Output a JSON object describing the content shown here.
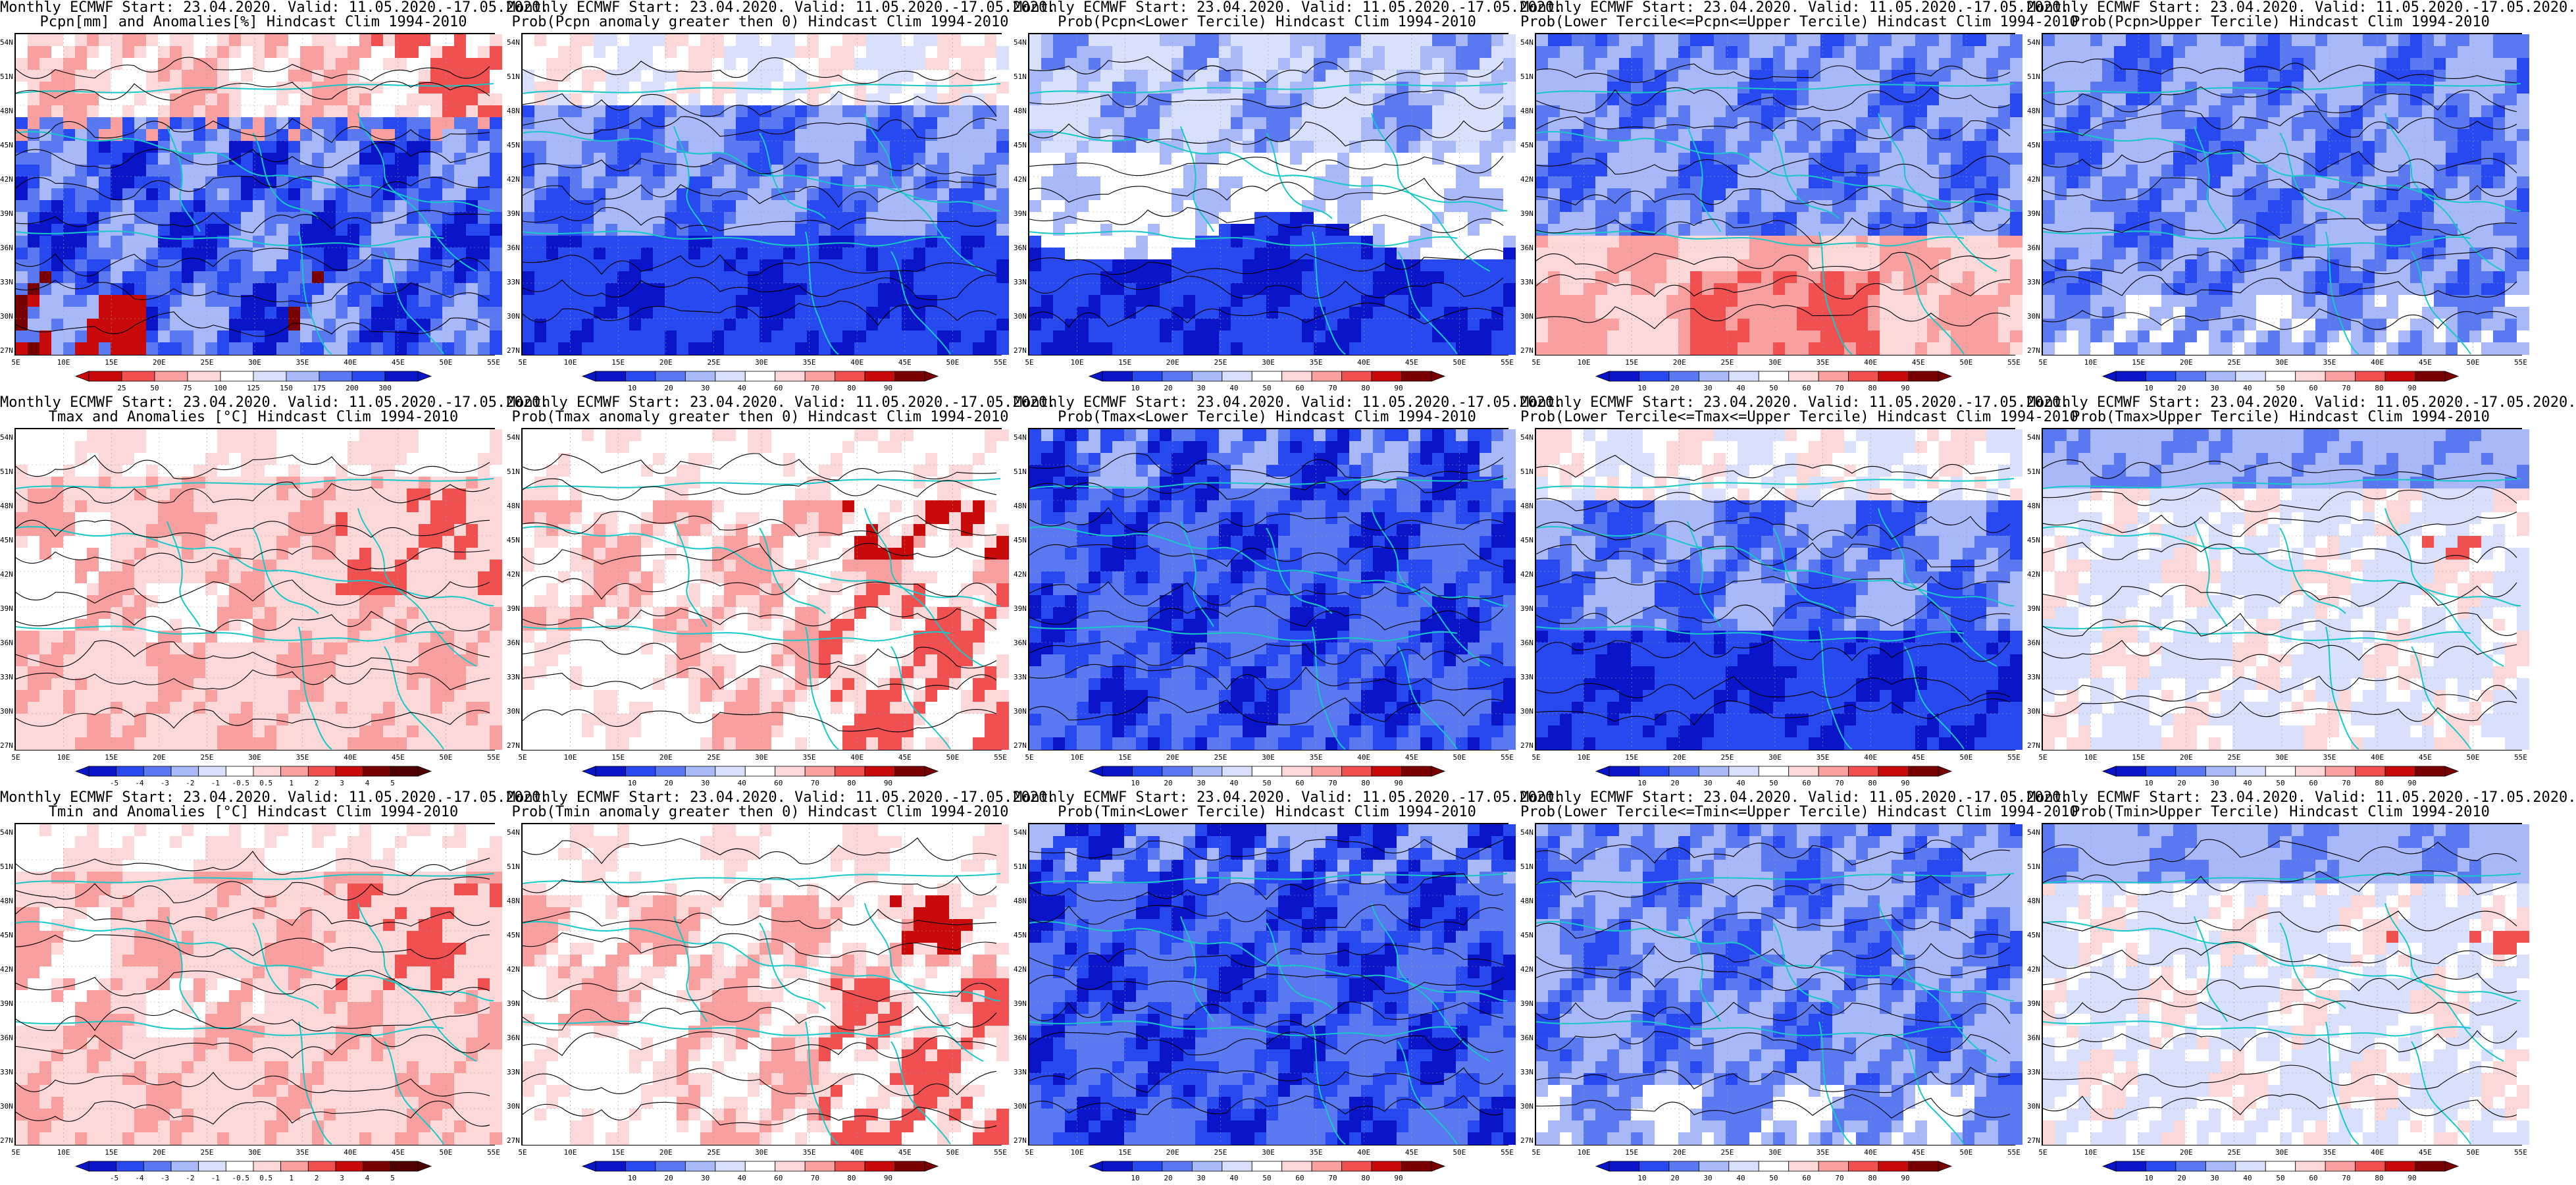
{
  "figure": {
    "panels": [
      {
        "line1": "Monthly ECMWF Start: 23.04.2020. Valid: 11.05.2020.-17.05.2020.",
        "line2": "Pcpn[mm] and Anomalies[%] Hindcast Clim 1994-2010",
        "scheme": "diverging-precip",
        "cbar_labels": [
          "25",
          "50",
          "75",
          "100",
          "125",
          "150",
          "175",
          "200",
          "300"
        ]
      },
      {
        "line1": "Monthly ECMWF Start: 23.04.2020. Valid: 11.05.2020.-17.05.2020.",
        "line2": "Prob(Pcpn anomaly greater then 0) Hindcast Clim 1994-2010",
        "scheme": "prob-blue",
        "cbar_labels": [
          "10",
          "20",
          "30",
          "40",
          "60",
          "70",
          "80",
          "90"
        ]
      },
      {
        "line1": "Monthly ECMWF Start: 23.04.2020. Valid: 11.05.2020.-17.05.2020.",
        "line2": "Prob(Pcpn<Lower Tercile) Hindcast Clim 1994-2010",
        "scheme": "prob-white-south",
        "cbar_labels": [
          "10",
          "20",
          "30",
          "40",
          "50",
          "60",
          "70",
          "80",
          "90"
        ]
      },
      {
        "line1": "Monthly ECMWF Start: 23.04.2020. Valid: 11.05.2020.-17.05.2020.",
        "line2": "Prob(Lower Tercile<=Pcpn<=Upper Tercile) Hindcast Clim 1994-2010",
        "scheme": "prob-red-south",
        "cbar_labels": [
          "10",
          "20",
          "30",
          "40",
          "50",
          "60",
          "70",
          "80",
          "90"
        ]
      },
      {
        "line1": "Monthly ECMWF Start: 23.04.2020. Valid: 11.05.2020.-17.05.2020.",
        "line2": "Prob(Pcpn>Upper Tercile) Hindcast Clim 1994-2010",
        "scheme": "prob-blue-light",
        "cbar_labels": [
          "10",
          "20",
          "30",
          "40",
          "50",
          "60",
          "70",
          "80",
          "90"
        ]
      },
      {
        "line1": "Monthly ECMWF Start: 23.04.2020. Valid: 11.05.2020.-17.05.2020.",
        "line2": "Tmax and Anomalies [°C] Hindcast Clim 1994-2010",
        "scheme": "anom-red",
        "cbar_labels": [
          "-5",
          "-4",
          "-3",
          "-2",
          "-1",
          "-0.5",
          "0.5",
          "1",
          "2",
          "3",
          "4",
          "5"
        ]
      },
      {
        "line1": "Monthly ECMWF Start: 23.04.2020. Valid: 11.05.2020.-17.05.2020.",
        "line2": "Prob(Tmax anomaly greater then 0) Hindcast Clim 1994-2010",
        "scheme": "prob-red",
        "cbar_labels": [
          "10",
          "20",
          "30",
          "40",
          "60",
          "70",
          "80",
          "90"
        ]
      },
      {
        "line1": "Monthly ECMWF Start: 23.04.2020. Valid: 11.05.2020.-17.05.2020.",
        "line2": "Prob(Tmax<Lower Tercile) Hindcast Clim 1994-2010",
        "scheme": "prob-deepblue",
        "cbar_labels": [
          "10",
          "20",
          "30",
          "40",
          "50",
          "60",
          "70",
          "80",
          "90"
        ]
      },
      {
        "line1": "Monthly ECMWF Start: 23.04.2020. Valid: 11.05.2020.-17.05.2020.",
        "line2": "Prob(Lower Tercile<=Tmax<=Upper Tercile) Hindcast Clim 1994-2010",
        "scheme": "prob-blue",
        "cbar_labels": [
          "10",
          "20",
          "30",
          "40",
          "50",
          "60",
          "70",
          "80",
          "90"
        ]
      },
      {
        "line1": "Monthly ECMWF Start: 23.04.2020. Valid: 11.05.2020.-17.05.2020.",
        "line2": "Prob(Tmax>Upper Tercile) Hindcast Clim 1994-2010",
        "scheme": "prob-whitish",
        "cbar_labels": [
          "10",
          "20",
          "30",
          "40",
          "50",
          "60",
          "70",
          "80",
          "90"
        ]
      },
      {
        "line1": "Monthly ECMWF Start: 23.04.2020. Valid: 11.05.2020.-17.05.2020.",
        "line2": "Tmin and Anomalies [°C] Hindcast Clim 1994-2010",
        "scheme": "anom-red",
        "cbar_labels": [
          "-5",
          "-4",
          "-3",
          "-2",
          "-1",
          "-0.5",
          "0.5",
          "1",
          "2",
          "3",
          "4",
          "5"
        ]
      },
      {
        "line1": "Monthly ECMWF Start: 23.04.2020. Valid: 11.05.2020.-17.05.2020.",
        "line2": "Prob(Tmin anomaly greater then 0) Hindcast Clim 1994-2010",
        "scheme": "prob-red",
        "cbar_labels": [
          "10",
          "20",
          "30",
          "40",
          "60",
          "70",
          "80",
          "90"
        ]
      },
      {
        "line1": "Monthly ECMWF Start: 23.04.2020. Valid: 11.05.2020.-17.05.2020.",
        "line2": "Prob(Tmin<Lower Tercile) Hindcast Clim 1994-2010",
        "scheme": "prob-deepblue",
        "cbar_labels": [
          "10",
          "20",
          "30",
          "40",
          "50",
          "60",
          "70",
          "80",
          "90"
        ]
      },
      {
        "line1": "Monthly ECMWF Start: 23.04.2020. Valid: 11.05.2020.-17.05.2020.",
        "line2": "Prob(Lower Tercile<=Tmin<=Upper Tercile) Hindcast Clim 1994-2010",
        "scheme": "prob-blue-light",
        "cbar_labels": [
          "10",
          "20",
          "30",
          "40",
          "50",
          "60",
          "70",
          "80",
          "90"
        ]
      },
      {
        "line1": "Monthly ECMWF Start: 23.04.2020. Valid: 11.05.2020.-17.05.2020.",
        "line2": "Prob(Tmin>Upper Tercile) Hindcast Clim 1994-2010",
        "scheme": "prob-whitish",
        "cbar_labels": [
          "10",
          "20",
          "30",
          "40",
          "50",
          "60",
          "70",
          "80",
          "90"
        ]
      }
    ],
    "lat_labels": [
      "54N",
      "51N",
      "48N",
      "45N",
      "42N",
      "39N",
      "36N",
      "33N",
      "30N",
      "27N"
    ],
    "lon_labels": [
      "5E",
      "10E",
      "15E",
      "20E",
      "25E",
      "30E",
      "35E",
      "40E",
      "45E",
      "50E",
      "55E"
    ],
    "colors": {
      "deep_blue": "#0a14c8",
      "blue": "#2848f0",
      "mid_blue": "#5a78f0",
      "light_blue": "#a8b8f8",
      "pale_blue": "#d8e0fc",
      "white": "#ffffff",
      "pale_red": "#fcd8d8",
      "light_red": "#f8a0a0",
      "red": "#f05050",
      "deep_red": "#c80a0a",
      "dark_red": "#780000",
      "coast": "#18c8c8",
      "contour": "#000000"
    }
  }
}
